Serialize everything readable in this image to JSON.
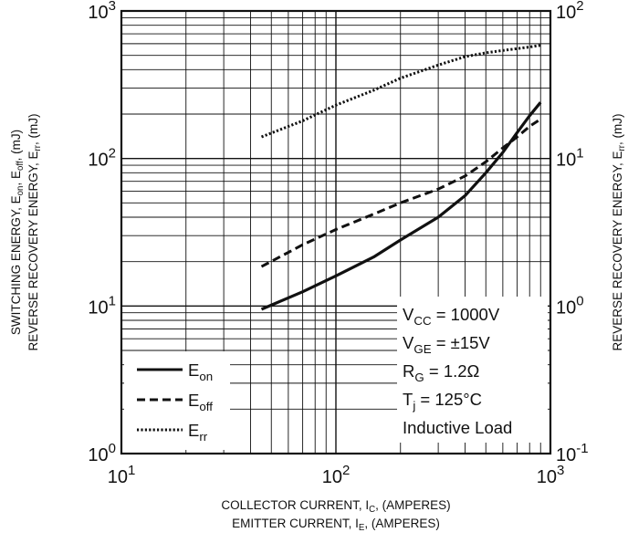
{
  "chart_data": {
    "type": "line",
    "x_scale": "log",
    "y_scale": "log",
    "y2_scale": "log",
    "xlim": [
      10,
      1000
    ],
    "ylim": [
      1,
      1000
    ],
    "y2lim": [
      0.1,
      100
    ],
    "grid": true,
    "legend_position": "bottom-left",
    "x_ticks": [
      {
        "base": "10",
        "exp": "1"
      },
      {
        "base": "10",
        "exp": "2"
      },
      {
        "base": "10",
        "exp": "3"
      }
    ],
    "y_ticks": [
      {
        "base": "10",
        "exp": "0"
      },
      {
        "base": "10",
        "exp": "1"
      },
      {
        "base": "10",
        "exp": "2"
      },
      {
        "base": "10",
        "exp": "3"
      }
    ],
    "y2_ticks": [
      {
        "base": "10",
        "exp": "-1"
      },
      {
        "base": "10",
        "exp": "0"
      },
      {
        "base": "10",
        "exp": "1"
      },
      {
        "base": "10",
        "exp": "2"
      }
    ],
    "xlabel_lines": [
      {
        "main": "COLLECTOR CURRENT, I",
        "sub": "C",
        "rest": ", (AMPERES)"
      },
      {
        "main": "EMITTER CURRENT, I",
        "sub": "E",
        "rest": ", (AMPERES)"
      }
    ],
    "ylabel_lines": [
      {
        "parts": [
          {
            "t": "SWITCHING ENERGY, E"
          },
          {
            "t": "on",
            "sub": true
          },
          {
            "t": ", E"
          },
          {
            "t": "off",
            "sub": true
          },
          {
            "t": ", (mJ)"
          }
        ]
      },
      {
        "parts": [
          {
            "t": "REVERSE RECOVERY ENERGY, E"
          },
          {
            "t": "rr",
            "sub": true
          },
          {
            "t": ", (mJ)"
          }
        ]
      }
    ],
    "y2label_lines": [
      {
        "parts": [
          {
            "t": "REVERSE RECOVERY ENERGY, E"
          },
          {
            "t": "rr",
            "sub": true
          },
          {
            "t": ", (mJ)"
          }
        ]
      }
    ],
    "series": [
      {
        "name": "E",
        "name_sub": "on",
        "axis": "left",
        "style": "solid",
        "points": [
          [
            45,
            9.5
          ],
          [
            70,
            12.5
          ],
          [
            100,
            16
          ],
          [
            150,
            21.5
          ],
          [
            200,
            28
          ],
          [
            300,
            40
          ],
          [
            400,
            56
          ],
          [
            500,
            80
          ],
          [
            600,
            110
          ],
          [
            700,
            150
          ],
          [
            800,
            195
          ],
          [
            900,
            240
          ]
        ]
      },
      {
        "name": "E",
        "name_sub": "off",
        "axis": "left",
        "style": "dashed",
        "points": [
          [
            45,
            18.5
          ],
          [
            70,
            26
          ],
          [
            100,
            33
          ],
          [
            150,
            42
          ],
          [
            200,
            50
          ],
          [
            300,
            62
          ],
          [
            400,
            76
          ],
          [
            500,
            95
          ],
          [
            600,
            118
          ],
          [
            700,
            140
          ],
          [
            800,
            165
          ],
          [
            900,
            185
          ]
        ]
      },
      {
        "name": "E",
        "name_sub": "rr",
        "axis": "right",
        "style": "dotted",
        "points": [
          [
            45,
            14
          ],
          [
            70,
            18
          ],
          [
            100,
            23
          ],
          [
            150,
            29
          ],
          [
            200,
            35
          ],
          [
            300,
            43
          ],
          [
            400,
            49
          ],
          [
            500,
            52
          ],
          [
            600,
            54
          ],
          [
            700,
            55.5
          ],
          [
            800,
            57
          ],
          [
            900,
            58.5
          ]
        ]
      }
    ],
    "annotations": [
      {
        "parts": [
          {
            "t": "V"
          },
          {
            "t": "CC",
            "sub": true
          },
          {
            "t": " = 1000V"
          }
        ]
      },
      {
        "parts": [
          {
            "t": "V"
          },
          {
            "t": "GE",
            "sub": true
          },
          {
            "t": " = ±15V"
          }
        ]
      },
      {
        "parts": [
          {
            "t": "R"
          },
          {
            "t": "G",
            "sub": true
          },
          {
            "t": " = 1.2Ω"
          }
        ]
      },
      {
        "parts": [
          {
            "t": "T"
          },
          {
            "t": "j",
            "sub": true
          },
          {
            "t": " = 125°C"
          }
        ]
      },
      {
        "parts": [
          {
            "t": "Inductive Load"
          }
        ]
      }
    ]
  }
}
